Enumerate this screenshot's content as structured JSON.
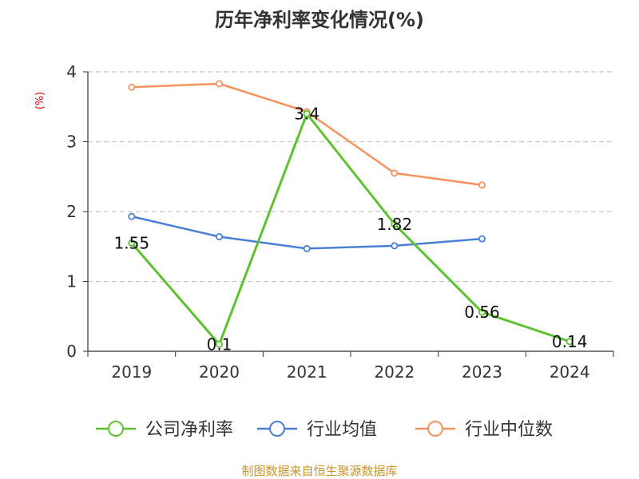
{
  "chart_data": {
    "type": "line",
    "title": "历年净利率变化情况(%)",
    "unit_label": "(%)",
    "categories": [
      "2019",
      "2020",
      "2021",
      "2022",
      "2023",
      "2024"
    ],
    "ylim": [
      0,
      4
    ],
    "yticks": [
      "0",
      "1",
      "2",
      "3",
      "4"
    ],
    "grid": true,
    "legend_position": "bottom",
    "series": [
      {
        "name": "公司净利率",
        "color": "#5cc22f",
        "values": [
          1.55,
          0.1,
          3.4,
          1.82,
          0.56,
          0.14
        ],
        "labels": [
          "1.55",
          "0.1",
          "3.4",
          "1.82",
          "0.56",
          "0.14"
        ]
      },
      {
        "name": "行业均值",
        "color": "#4a7fd8",
        "values": [
          1.93,
          1.64,
          1.47,
          1.51,
          1.61,
          null
        ]
      },
      {
        "name": "行业中位数",
        "color": "#f5915a",
        "values": [
          3.78,
          3.83,
          3.43,
          2.55,
          2.38,
          null
        ]
      }
    ]
  },
  "source": "制图数据来自恒生聚源数据库"
}
